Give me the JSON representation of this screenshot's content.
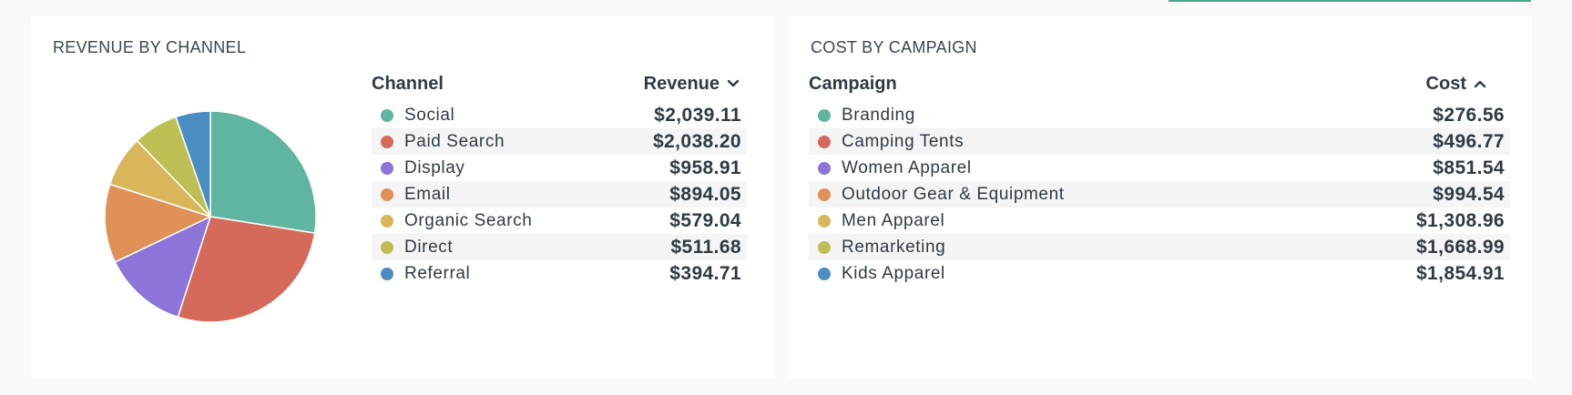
{
  "revenue_card": {
    "title": "REVENUE BY CHANNEL",
    "col_label": "Channel",
    "col_value": "Revenue",
    "sort_icon": "chevron-down-icon",
    "rows": [
      {
        "label": "Social",
        "value": "$2,039.11",
        "color": "#5fb59f"
      },
      {
        "label": "Paid Search",
        "value": "$2,038.20",
        "color": "#d56a5a"
      },
      {
        "label": "Display",
        "value": "$958.91",
        "color": "#8c74d8"
      },
      {
        "label": "Email",
        "value": "$894.05",
        "color": "#df9158"
      },
      {
        "label": "Organic Search",
        "value": "$579.04",
        "color": "#d9b65a"
      },
      {
        "label": "Direct",
        "value": "$511.68",
        "color": "#bdbf55"
      },
      {
        "label": "Referral",
        "value": "$394.71",
        "color": "#4a8dc0"
      }
    ]
  },
  "cost_card": {
    "title": "COST BY CAMPAIGN",
    "col_label": "Campaign",
    "col_value": "Cost",
    "sort_icon": "chevron-up-icon",
    "rows": [
      {
        "label": "Branding",
        "value": "$276.56",
        "color": "#5fb59f"
      },
      {
        "label": "Camping Tents",
        "value": "$496.77",
        "color": "#d56a5a"
      },
      {
        "label": "Women Apparel",
        "value": "$851.54",
        "color": "#8c74d8"
      },
      {
        "label": "Outdoor Gear & Equipment",
        "value": "$994.54",
        "color": "#df9158"
      },
      {
        "label": "Men Apparel",
        "value": "$1,308.96",
        "color": "#d9b65a"
      },
      {
        "label": "Remarketing",
        "value": "$1,668.99",
        "color": "#bdbf55"
      },
      {
        "label": "Kids Apparel",
        "value": "$1,854.91",
        "color": "#4a8dc0"
      }
    ]
  },
  "chart_data": {
    "type": "pie",
    "title": "",
    "categories": [
      "Social",
      "Paid Search",
      "Display",
      "Email",
      "Organic Search",
      "Direct",
      "Referral"
    ],
    "values": [
      2039.11,
      2038.2,
      958.91,
      894.05,
      579.04,
      511.68,
      394.71
    ],
    "colors": [
      "#5fb59f",
      "#d56a5a",
      "#8c74d8",
      "#df9158",
      "#d9b65a",
      "#bdbf55",
      "#4a8dc0"
    ]
  }
}
